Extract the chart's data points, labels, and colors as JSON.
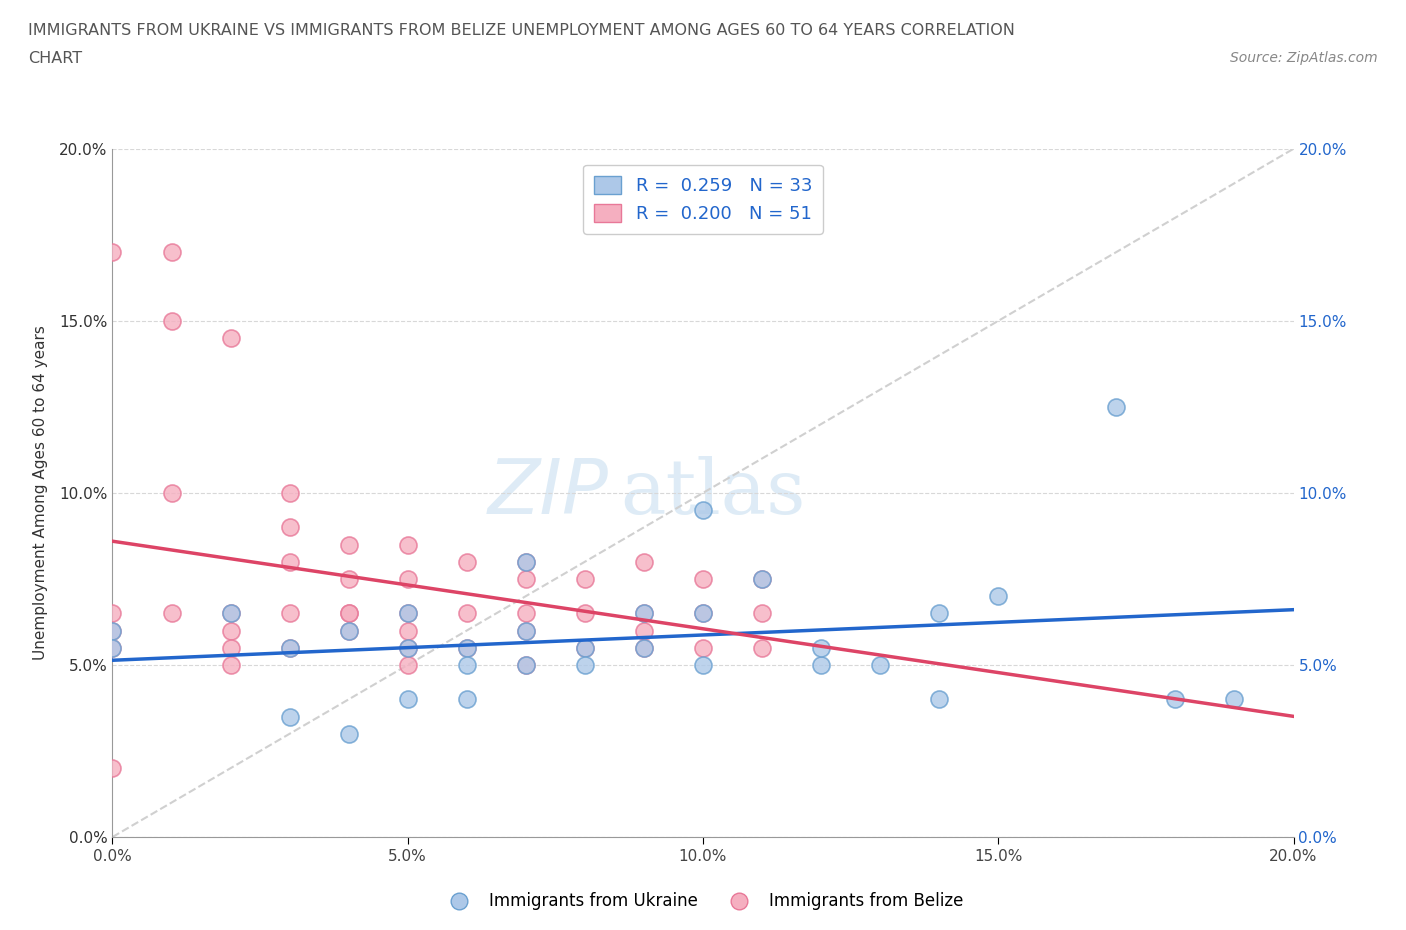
{
  "title_line1": "IMMIGRANTS FROM UKRAINE VS IMMIGRANTS FROM BELIZE UNEMPLOYMENT AMONG AGES 60 TO 64 YEARS CORRELATION",
  "title_line2": "CHART",
  "source_text": "Source: ZipAtlas.com",
  "ylabel": "Unemployment Among Ages 60 to 64 years",
  "xlim": [
    0.0,
    0.2
  ],
  "ylim": [
    0.0,
    0.2
  ],
  "xtick_vals": [
    0.0,
    0.05,
    0.1,
    0.15,
    0.2
  ],
  "ytick_vals": [
    0.0,
    0.05,
    0.1,
    0.15,
    0.2
  ],
  "ukraine_color": "#adc8e8",
  "belize_color": "#f5afc0",
  "ukraine_edge": "#6aa0d0",
  "belize_edge": "#e87898",
  "ukraine_line_color": "#2266cc",
  "belize_line_color": "#dd4466",
  "diag_color": "#d0d0d0",
  "R_ukraine": 0.259,
  "N_ukraine": 33,
  "R_belize": 0.2,
  "N_belize": 51,
  "legend_ukraine": "Immigrants from Ukraine",
  "legend_belize": "Immigrants from Belize",
  "watermark_part1": "ZIP",
  "watermark_part2": "atlas",
  "ukraine_x": [
    0.0,
    0.0,
    0.02,
    0.03,
    0.03,
    0.04,
    0.04,
    0.05,
    0.05,
    0.05,
    0.06,
    0.06,
    0.06,
    0.07,
    0.07,
    0.07,
    0.08,
    0.08,
    0.09,
    0.09,
    0.1,
    0.1,
    0.1,
    0.11,
    0.12,
    0.12,
    0.13,
    0.14,
    0.14,
    0.15,
    0.17,
    0.18,
    0.19
  ],
  "ukraine_y": [
    0.06,
    0.055,
    0.065,
    0.055,
    0.035,
    0.06,
    0.03,
    0.065,
    0.055,
    0.04,
    0.055,
    0.05,
    0.04,
    0.08,
    0.06,
    0.05,
    0.055,
    0.05,
    0.065,
    0.055,
    0.095,
    0.065,
    0.05,
    0.075,
    0.05,
    0.055,
    0.05,
    0.065,
    0.04,
    0.07,
    0.125,
    0.04,
    0.04
  ],
  "belize_x": [
    0.0,
    0.0,
    0.0,
    0.0,
    0.0,
    0.01,
    0.01,
    0.01,
    0.01,
    0.02,
    0.02,
    0.02,
    0.02,
    0.02,
    0.03,
    0.03,
    0.03,
    0.03,
    0.03,
    0.04,
    0.04,
    0.04,
    0.04,
    0.04,
    0.05,
    0.05,
    0.05,
    0.05,
    0.05,
    0.05,
    0.06,
    0.06,
    0.06,
    0.07,
    0.07,
    0.07,
    0.07,
    0.07,
    0.08,
    0.08,
    0.08,
    0.09,
    0.09,
    0.09,
    0.09,
    0.1,
    0.1,
    0.1,
    0.11,
    0.11,
    0.11
  ],
  "belize_y": [
    0.17,
    0.065,
    0.06,
    0.055,
    0.02,
    0.17,
    0.15,
    0.1,
    0.065,
    0.145,
    0.065,
    0.06,
    0.055,
    0.05,
    0.1,
    0.09,
    0.08,
    0.065,
    0.055,
    0.085,
    0.075,
    0.065,
    0.065,
    0.06,
    0.085,
    0.075,
    0.065,
    0.06,
    0.055,
    0.05,
    0.08,
    0.065,
    0.055,
    0.08,
    0.075,
    0.065,
    0.06,
    0.05,
    0.075,
    0.065,
    0.055,
    0.08,
    0.065,
    0.06,
    0.055,
    0.075,
    0.065,
    0.055,
    0.075,
    0.065,
    0.055
  ]
}
